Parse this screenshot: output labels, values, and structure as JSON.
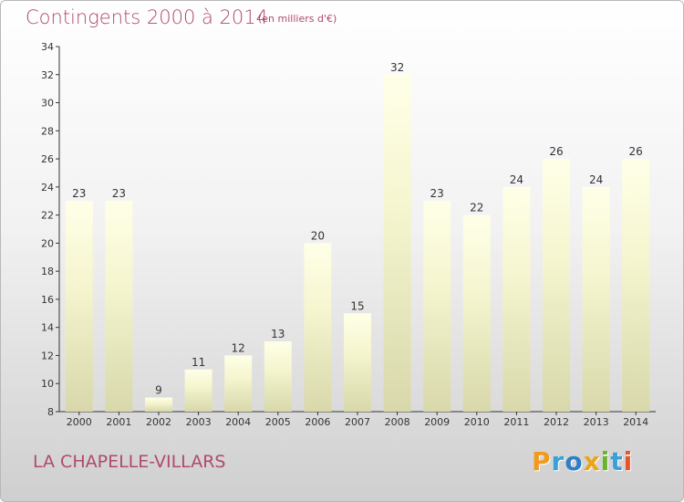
{
  "chart_data": {
    "type": "bar",
    "title": "Contingents 2000 à 2014",
    "subtitle": "(en milliers d'€)",
    "categories": [
      "2000",
      "2001",
      "2002",
      "2003",
      "2004",
      "2005",
      "2006",
      "2007",
      "2008",
      "2009",
      "2010",
      "2011",
      "2012",
      "2013",
      "2014"
    ],
    "values": [
      23,
      23,
      9,
      11,
      12,
      13,
      20,
      15,
      32,
      23,
      22,
      24,
      26,
      24,
      26
    ],
    "ylim": [
      8,
      34
    ],
    "yticks": [
      8,
      10,
      12,
      14,
      16,
      18,
      20,
      22,
      24,
      26,
      28,
      30,
      32,
      34
    ],
    "xlabel": "",
    "ylabel": "",
    "grid": false,
    "legend": "none",
    "bar_color": "#f5f5cf",
    "bar_color_top": "#ffffe8",
    "bar_color_bottom": "#d8d8ab"
  },
  "location": "LA CHAPELLE-VILLARS",
  "brand": {
    "letters": [
      "P",
      "r",
      "o",
      "x",
      "i",
      "t",
      "i"
    ],
    "colors": [
      "#f39a1c",
      "#3aa0d8",
      "#2e7ec8",
      "#e8a51a",
      "#6ab42d",
      "#3aa0d8",
      "#e8532a"
    ]
  },
  "colors": {
    "title": "#b04a6e",
    "axis": "#333333"
  }
}
